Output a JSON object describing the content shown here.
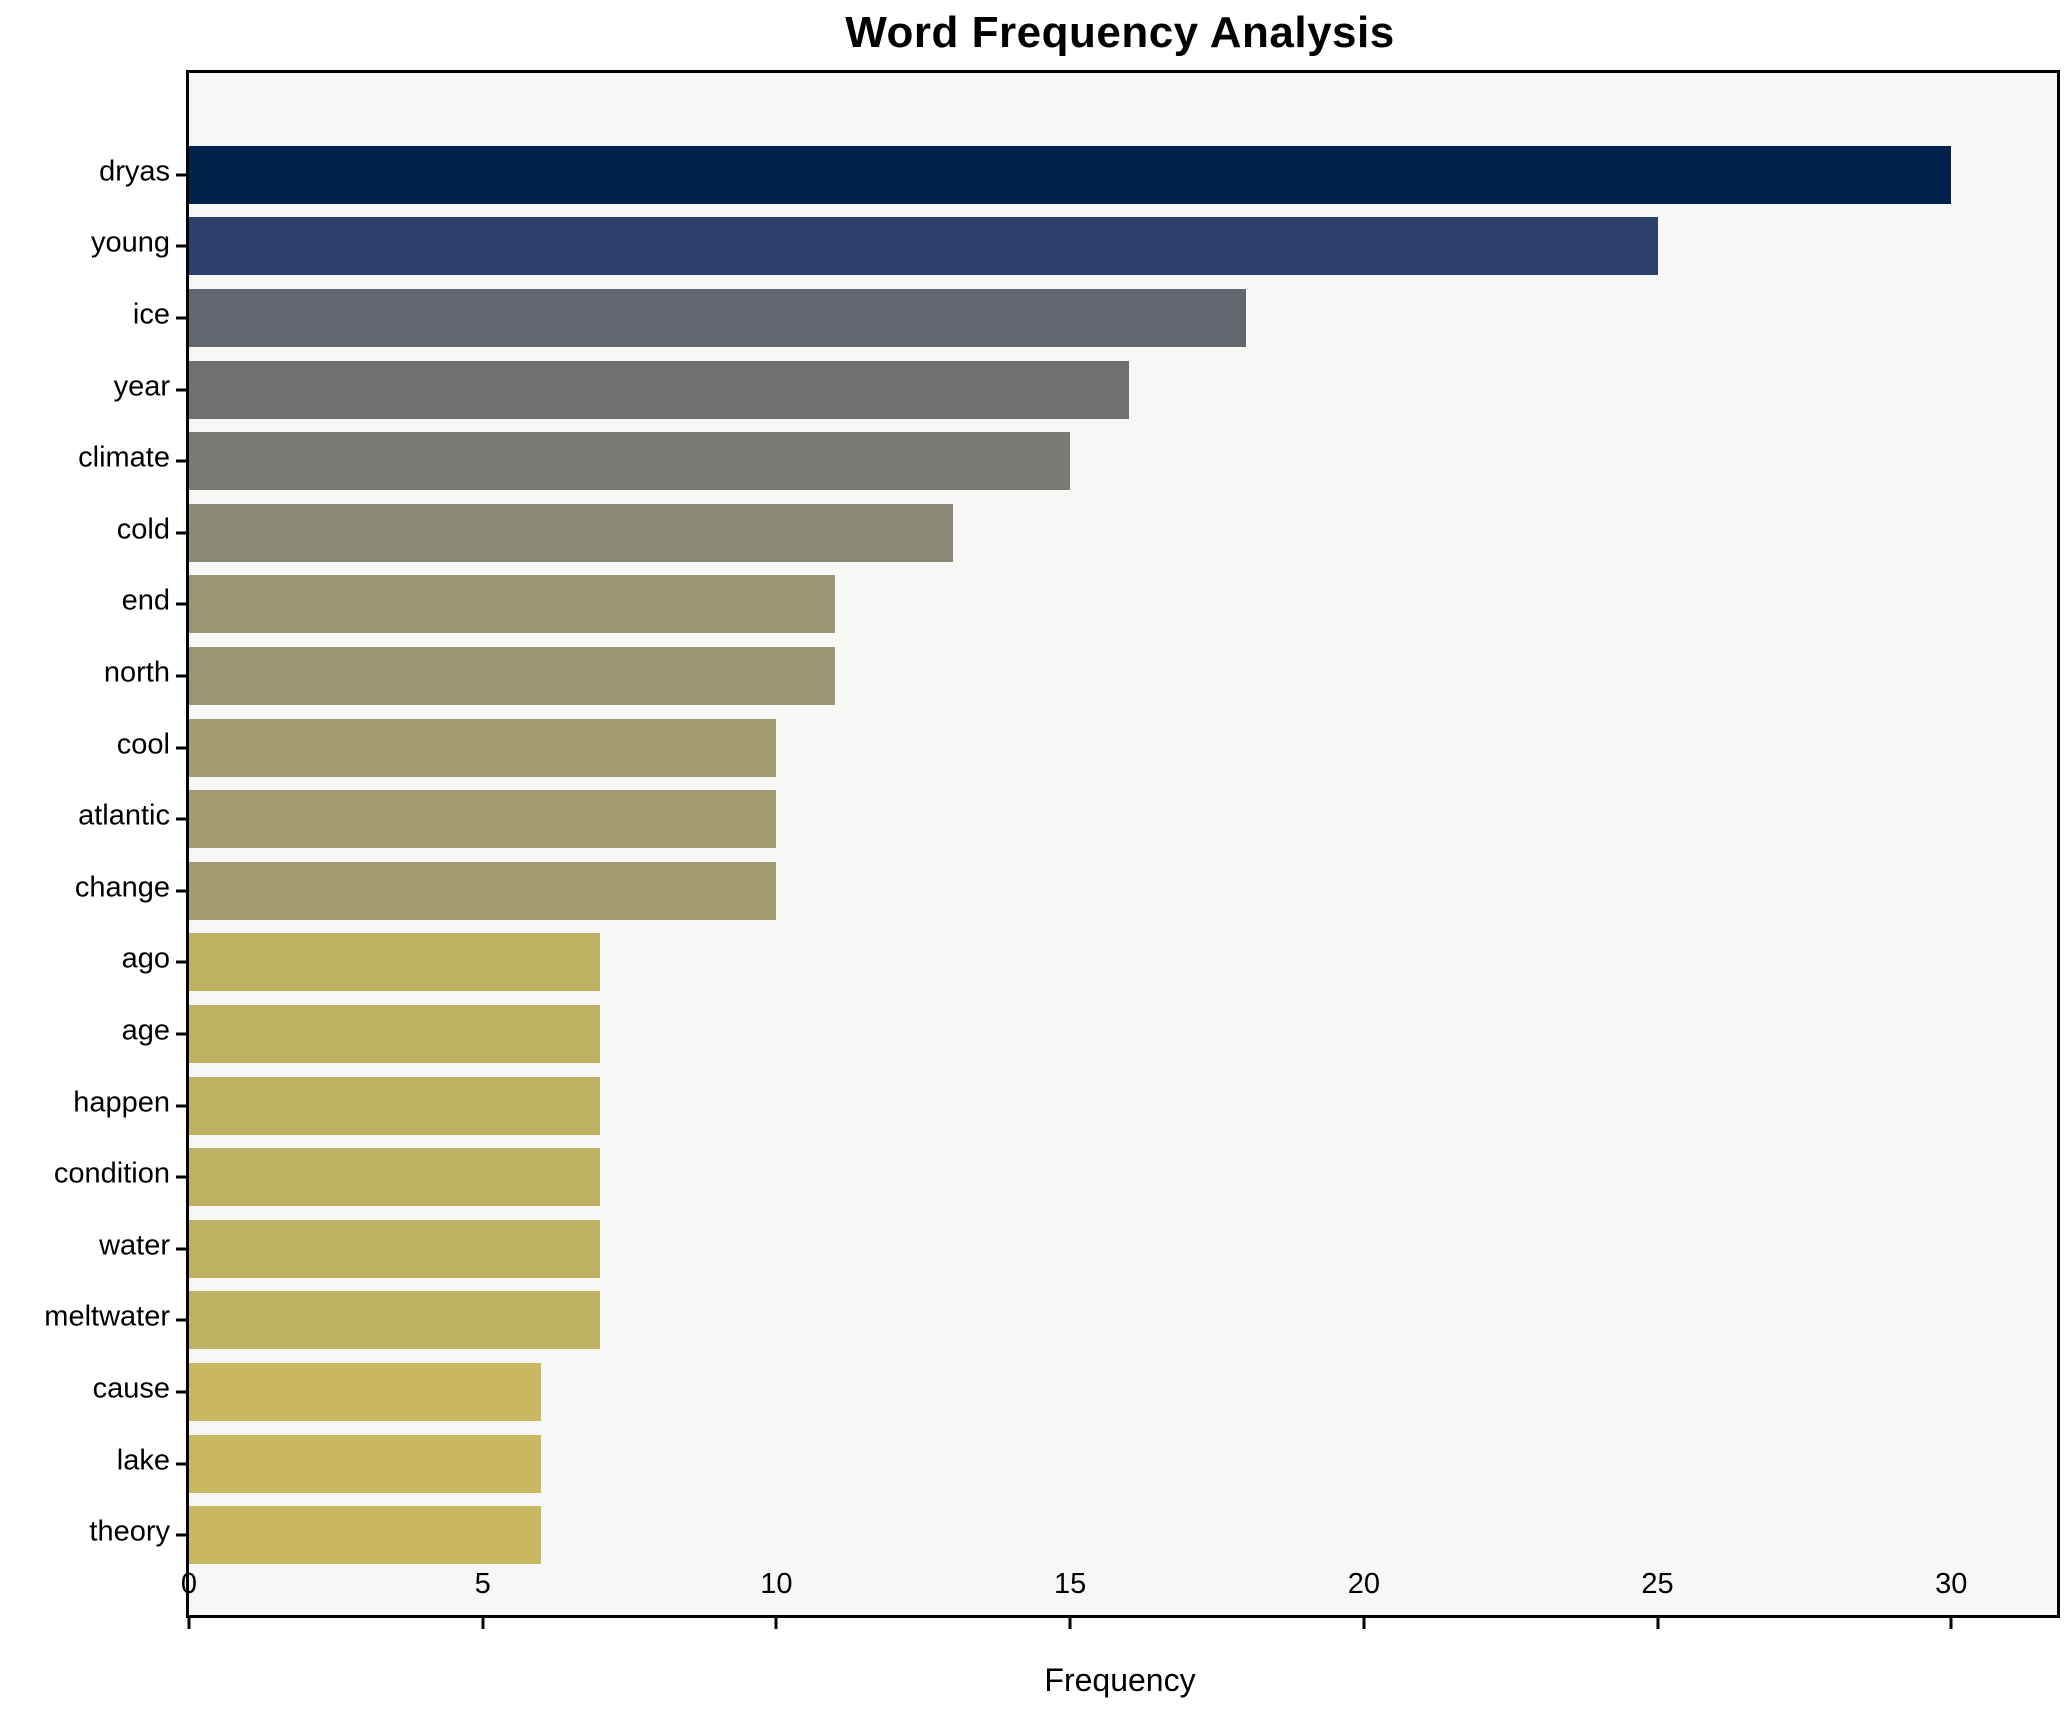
{
  "title": "Word Frequency Analysis",
  "chart_data": {
    "type": "bar",
    "orientation": "horizontal",
    "title": "Word Frequency Analysis",
    "xlabel": "Frequency",
    "ylabel": "",
    "categories": [
      "dryas",
      "young",
      "ice",
      "year",
      "climate",
      "cold",
      "end",
      "north",
      "cool",
      "atlantic",
      "change",
      "ago",
      "age",
      "happen",
      "condition",
      "water",
      "meltwater",
      "cause",
      "lake",
      "theory"
    ],
    "values": [
      30,
      25,
      18,
      16,
      15,
      13,
      11,
      11,
      10,
      10,
      10,
      7,
      7,
      7,
      7,
      7,
      7,
      6,
      6,
      6
    ],
    "bar_colors": [
      "#00234e",
      "#2d3f6b",
      "#63666f",
      "#6f7072",
      "#7a7a75",
      "#8c8876",
      "#9c9574",
      "#9c9574",
      "#a39b70",
      "#a39b70",
      "#a39b70",
      "#bfb164",
      "#bfb164",
      "#bfb164",
      "#bfb164",
      "#bfb164",
      "#bfb164",
      "#c7b861",
      "#c7b861",
      "#c7b861"
    ],
    "xticks": [
      0,
      5,
      10,
      15,
      20,
      25,
      30
    ],
    "xlim": [
      0,
      31.8
    ],
    "grid": false,
    "legend": false,
    "plot_background": "#f7f7f6",
    "figure_background": "#ffffff",
    "spine_color": "#000000"
  }
}
